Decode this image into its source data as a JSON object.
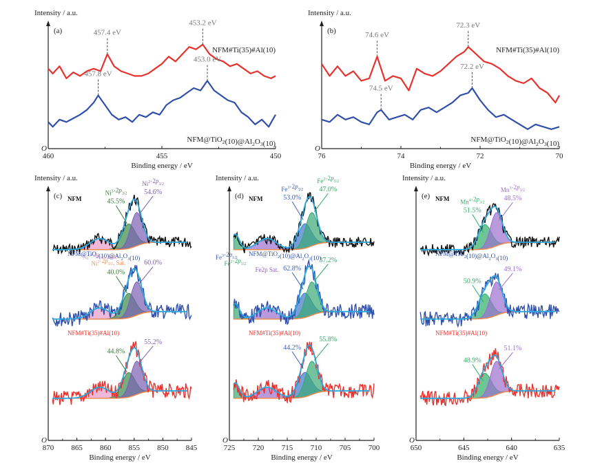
{
  "chart_data": [
    {
      "id": "a",
      "type": "line",
      "panel_label": "(a)",
      "ylabel": "Intensity / a.u.",
      "xlabel": "Binding energy / eV",
      "origin_label": "O",
      "xlim": [
        460,
        450
      ],
      "x_ticks": [
        "460",
        "455",
        "450"
      ],
      "series": [
        {
          "name": "NFM#Ti(35)#Al(10)",
          "color": "#e8312c",
          "x": [
            460,
            459.8,
            459.5,
            459.2,
            458.9,
            458.6,
            458.3,
            458,
            457.7,
            457.4,
            457.1,
            456.8,
            456.5,
            456.2,
            455.9,
            455.6,
            455.3,
            455,
            454.7,
            454.4,
            454.1,
            453.8,
            453.5,
            453.2,
            452.9,
            452.6,
            452.3,
            452,
            451.7,
            451.4,
            451.1,
            450.8,
            450.5,
            450.2,
            450
          ],
          "y": [
            0.66,
            0.62,
            0.68,
            0.58,
            0.63,
            0.6,
            0.64,
            0.66,
            0.64,
            0.78,
            0.68,
            0.64,
            0.62,
            0.6,
            0.6,
            0.62,
            0.66,
            0.7,
            0.76,
            0.72,
            0.78,
            0.84,
            0.82,
            0.86,
            0.78,
            0.74,
            0.72,
            0.68,
            0.7,
            0.66,
            0.62,
            0.64,
            0.6,
            0.58,
            0.6
          ]
        },
        {
          "name": "NFM@TiO2(10)@Al2O3(10)",
          "color": "#2f4fa8",
          "x": [
            460,
            459.8,
            459.5,
            459.2,
            458.9,
            458.6,
            458.3,
            458,
            457.8,
            457.5,
            457.2,
            456.9,
            456.6,
            456.3,
            456,
            455.7,
            455.4,
            455.1,
            454.8,
            454.5,
            454.2,
            453.9,
            453.6,
            453.3,
            453,
            452.7,
            452.4,
            452.1,
            451.8,
            451.5,
            451.2,
            450.9,
            450.6,
            450.3,
            450
          ],
          "y": [
            0.22,
            0.18,
            0.24,
            0.22,
            0.25,
            0.28,
            0.32,
            0.38,
            0.44,
            0.36,
            0.28,
            0.24,
            0.26,
            0.22,
            0.28,
            0.26,
            0.3,
            0.28,
            0.36,
            0.4,
            0.42,
            0.46,
            0.5,
            0.48,
            0.56,
            0.48,
            0.44,
            0.4,
            0.38,
            0.3,
            0.26,
            0.2,
            0.24,
            0.18,
            0.28
          ]
        }
      ],
      "annotations": [
        {
          "text": "457.4 eV",
          "x": 457.4,
          "series": 0
        },
        {
          "text": "453.2 eV",
          "x": 453.2,
          "series": 0
        },
        {
          "text": "457.8 eV",
          "x": 457.8,
          "series": 1
        },
        {
          "text": "453.0 eV",
          "x": 453.0,
          "series": 1
        }
      ],
      "legend": [
        {
          "text": "NFM#Ti(35)#Al(10)",
          "color": "#e8312c",
          "placement": "right"
        },
        {
          "text": "NFM@TiO2(10)@Al2O3(10)",
          "color": "#2f4fa8",
          "placement": "bottom-right"
        }
      ]
    },
    {
      "id": "b",
      "type": "line",
      "panel_label": "(b)",
      "ylabel": "Intensity / a.u.",
      "xlabel": "Binding energy / eV",
      "origin_label": "O",
      "xlim": [
        76,
        70
      ],
      "x_ticks": [
        "76",
        "74",
        "72",
        "70"
      ],
      "series": [
        {
          "name": "NFM#Ti(35)#Al(10)",
          "color": "#e8312c",
          "x": [
            76,
            75.8,
            75.6,
            75.4,
            75.2,
            75,
            74.8,
            74.6,
            74.4,
            74.2,
            74,
            73.8,
            73.6,
            73.4,
            73.2,
            73,
            72.8,
            72.6,
            72.4,
            72.3,
            72.1,
            71.9,
            71.7,
            71.5,
            71.3,
            71.1,
            70.9,
            70.7,
            70.5,
            70.3,
            70.1,
            70
          ],
          "y": [
            0.7,
            0.6,
            0.68,
            0.6,
            0.64,
            0.56,
            0.58,
            0.76,
            0.56,
            0.6,
            0.58,
            0.48,
            0.66,
            0.62,
            0.6,
            0.64,
            0.7,
            0.76,
            0.8,
            0.84,
            0.78,
            0.72,
            0.7,
            0.66,
            0.6,
            0.56,
            0.54,
            0.58,
            0.5,
            0.46,
            0.38,
            0.44
          ]
        },
        {
          "name": "NFM@TiO2(10)@Al2O3(10)",
          "color": "#2f4fa8",
          "x": [
            76,
            75.8,
            75.6,
            75.4,
            75.2,
            75,
            74.8,
            74.6,
            74.5,
            74.3,
            74.1,
            73.9,
            73.7,
            73.5,
            73.3,
            73.1,
            72.9,
            72.7,
            72.5,
            72.3,
            72.2,
            72,
            71.8,
            71.6,
            71.4,
            71.2,
            71,
            70.8,
            70.6,
            70.4,
            70.2,
            70
          ],
          "y": [
            0.24,
            0.22,
            0.28,
            0.24,
            0.26,
            0.22,
            0.2,
            0.3,
            0.32,
            0.24,
            0.26,
            0.28,
            0.24,
            0.32,
            0.34,
            0.3,
            0.34,
            0.38,
            0.44,
            0.46,
            0.5,
            0.4,
            0.32,
            0.26,
            0.28,
            0.24,
            0.2,
            0.16,
            0.2,
            0.18,
            0.16,
            0.18
          ]
        }
      ],
      "annotations": [
        {
          "text": "74.6 eV",
          "x": 74.6,
          "series": 0
        },
        {
          "text": "72.3 eV",
          "x": 72.3,
          "series": 0
        },
        {
          "text": "74.5 eV",
          "x": 74.5,
          "series": 1
        },
        {
          "text": "72.2 eV",
          "x": 72.2,
          "series": 1
        }
      ],
      "legend": [
        {
          "text": "NFM#Ti(35)#Al(10)",
          "color": "#e8312c",
          "placement": "right"
        },
        {
          "text": "NFM@TiO2(10)@Al2O3(10)",
          "color": "#2f4fa8",
          "placement": "bottom-right"
        }
      ]
    },
    {
      "id": "c",
      "type": "area",
      "panel_label": "(c)",
      "ylabel": "Intensity / a.u.",
      "xlabel": "Binding energy / eV",
      "origin_label": "O",
      "xlim": [
        870,
        845
      ],
      "x_ticks": [
        "870",
        "865",
        "860",
        "855",
        "850",
        "845"
      ],
      "samples": [
        {
          "name": "NFM",
          "data_color": "#111111",
          "components": [
            {
              "label": "Ni3+2p3/2",
              "color": "#3a8a4a",
              "center": 856.0,
              "percent": "45.5%"
            },
            {
              "label": "Ni2+2p3/2",
              "color": "#7a5fb3",
              "center": 854.6,
              "percent": "54.6%"
            },
            {
              "label": "Ni3+2p3/2, Sat.",
              "color": "#e89ac8",
              "center": 861.0
            },
            {
              "label": "Ni2+2p3/2, Sat.",
              "color": "#f0905a",
              "center": 859.5
            }
          ]
        },
        {
          "name": "NFM@TiO2(10)@Al2O3(10)",
          "data_color": "#2f4fa8",
          "components": [
            {
              "label": "Ni3+2p3/2",
              "color": "#3a8a4a",
              "center": 856.0,
              "percent": "40.0%"
            },
            {
              "label": "Ni2+2p3/2",
              "color": "#7a5fb3",
              "center": 854.6,
              "percent": "60.0%"
            }
          ]
        },
        {
          "name": "NFM#Ti(35)#Al(10)",
          "data_color": "#e8312c",
          "components": [
            {
              "label": "Ni3+2p3/2",
              "color": "#3a8a4a",
              "center": 856.0,
              "percent": "44.8%"
            },
            {
              "label": "Ni2+2p3/2",
              "color": "#7a5fb3",
              "center": 854.6,
              "percent": "55.2%"
            }
          ]
        }
      ]
    },
    {
      "id": "d",
      "type": "area",
      "panel_label": "(d)",
      "ylabel": "Intensity / a.u.",
      "xlabel": "Binding energy / eV",
      "origin_label": "O",
      "xlim": [
        725,
        700
      ],
      "x_ticks": [
        "725",
        "720",
        "715",
        "710",
        "705",
        "700"
      ],
      "samples": [
        {
          "name": "NFM",
          "data_color": "#111111",
          "components": [
            {
              "label": "Fe3+2p3/2",
              "color": "#3f78c8",
              "center": 712.0,
              "percent": "53.0%"
            },
            {
              "label": "Fe2+2p3/2",
              "color": "#3aa876",
              "center": 710.8,
              "percent": "47.0%"
            },
            {
              "label": "Fe3+2p1/2",
              "color": "#3f78c8",
              "center": 725.5
            },
            {
              "label": "Fe2+2p1/2",
              "color": "#3aa876",
              "center": 724.0
            },
            {
              "label": "Fe2p Sat.",
              "color": "#9a6fcf",
              "center": 718.5
            }
          ]
        },
        {
          "name": "NFM@TiO2(10)@Al2O3(10)",
          "data_color": "#2f4fa8",
          "components": [
            {
              "label": "Fe3+2p3/2",
              "color": "#3f78c8",
              "center": 712.0,
              "percent": "62.8%"
            },
            {
              "label": "Fe2+2p3/2",
              "color": "#3aa876",
              "center": 710.8,
              "percent": "37.2%"
            }
          ]
        },
        {
          "name": "NFM#Ti(35)#Al(10)",
          "data_color": "#e8312c",
          "components": [
            {
              "label": "Fe3+2p3/2",
              "color": "#3f78c8",
              "center": 712.0,
              "percent": "44.2%"
            },
            {
              "label": "Fe2+2p3/2",
              "color": "#3aa876",
              "center": 710.8,
              "percent": "55.8%"
            }
          ]
        }
      ]
    },
    {
      "id": "e",
      "type": "area",
      "panel_label": "(e)",
      "ylabel": "Intensity / a.u.",
      "xlabel": "Binding energy / eV",
      "origin_label": "O",
      "xlim": [
        650,
        635
      ],
      "x_ticks": [
        "650",
        "645",
        "640",
        "635"
      ],
      "samples": [
        {
          "name": "NFM",
          "data_color": "#111111",
          "components": [
            {
              "label": "Mn4+2p3/2",
              "color": "#2fae6a",
              "center": 642.8,
              "percent": "51.5%"
            },
            {
              "label": "Mn3+2p3/2",
              "color": "#9a6fcf",
              "center": 641.6,
              "percent": "48.5%"
            }
          ]
        },
        {
          "name": "NFM@TiO2(10)@Al2O3(10)",
          "data_color": "#2f4fa8",
          "components": [
            {
              "label": "Mn4+2p3/2",
              "color": "#2fae6a",
              "center": 642.8,
              "percent": "50.9%"
            },
            {
              "label": "Mn3+2p3/2",
              "color": "#9a6fcf",
              "center": 641.6,
              "percent": "49.1%"
            }
          ]
        },
        {
          "name": "NFM#Ti(35)#Al(10)",
          "data_color": "#e8312c",
          "components": [
            {
              "label": "Mn4+2p3/2",
              "color": "#2fae6a",
              "center": 642.8,
              "percent": "48.9%"
            },
            {
              "label": "Mn3+2p3/2",
              "color": "#9a6fcf",
              "center": 641.6,
              "percent": "51.1%"
            }
          ]
        }
      ]
    }
  ]
}
